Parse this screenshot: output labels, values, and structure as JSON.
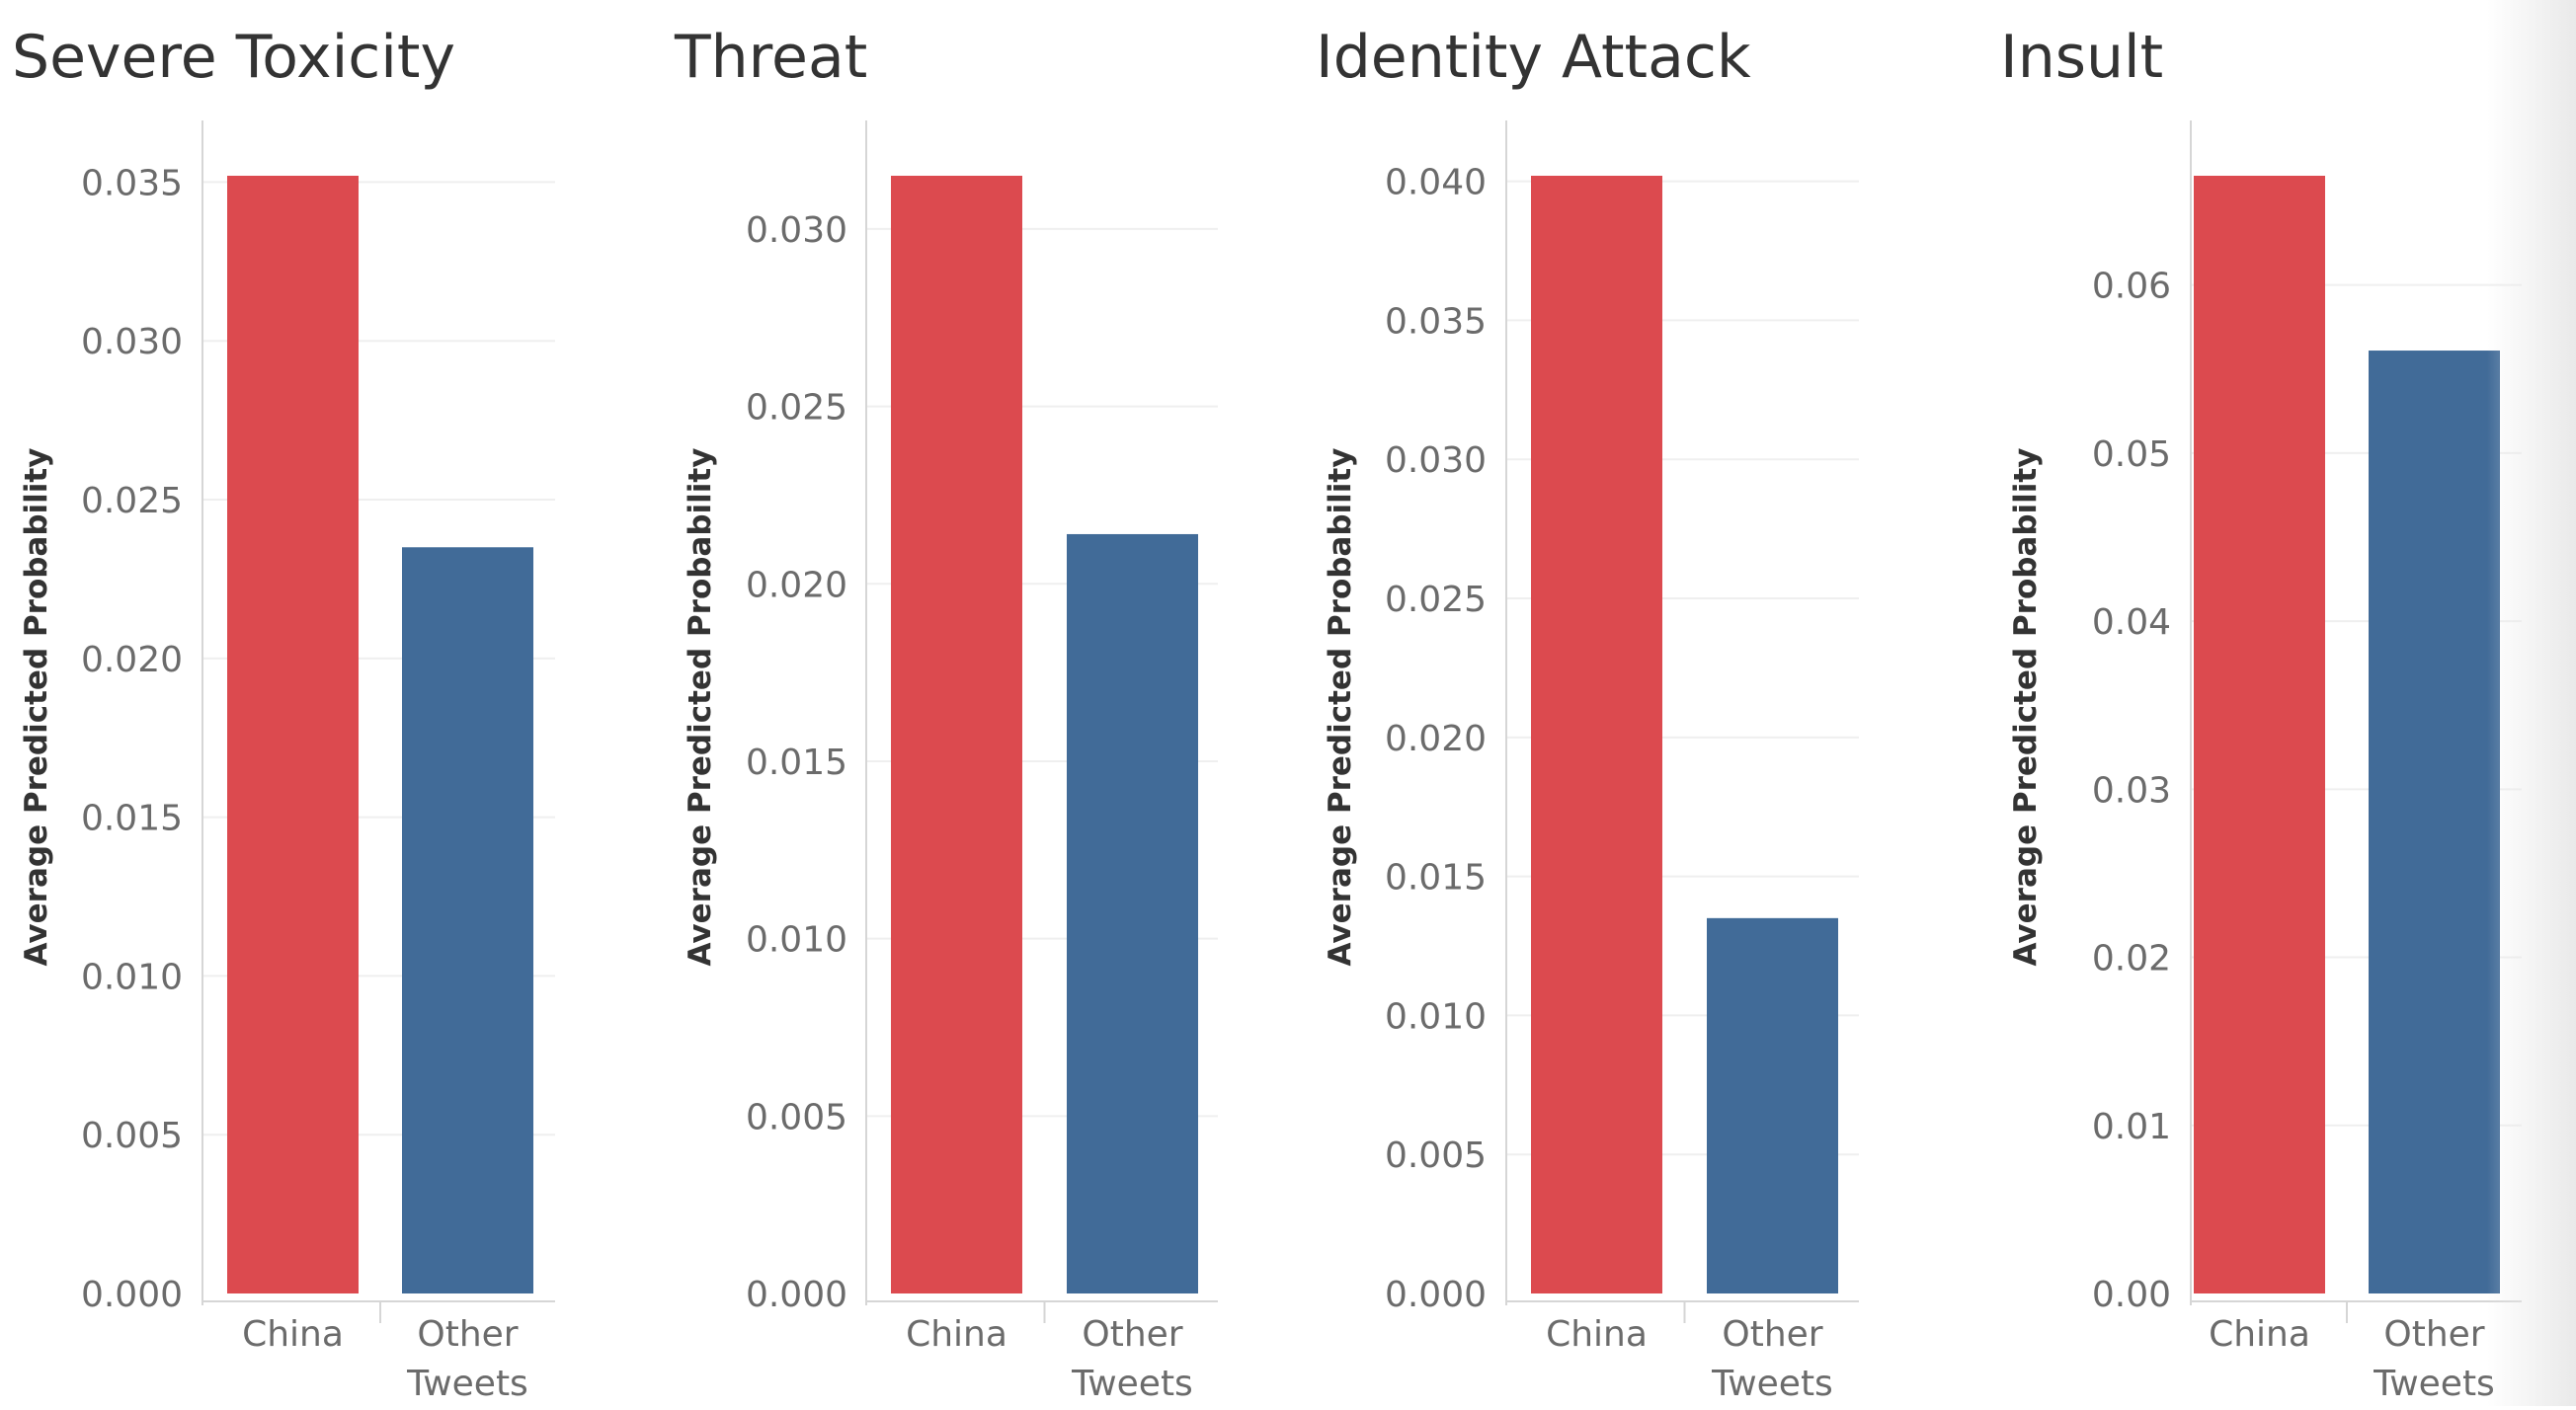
{
  "colors": {
    "china": "#DC4A4F",
    "other": "#416B98",
    "grid": "#efefef",
    "axis": "#d6d6d6",
    "tick_text": "#6b6b6b",
    "title_text": "#333333"
  },
  "chart_data": [
    {
      "type": "bar",
      "title": "Severe Toxicity",
      "ylabel": "Average Predicted Probability",
      "categories": [
        "China",
        "Other Tweets"
      ],
      "category_lines": [
        [
          "China"
        ],
        [
          "Other",
          "Tweets"
        ]
      ],
      "values": [
        0.0352,
        0.0235
      ],
      "ylim": [
        0,
        0.0352
      ],
      "yticks": [
        0,
        0.005,
        0.01,
        0.015,
        0.02,
        0.025,
        0.03,
        0.035
      ],
      "ytick_labels": [
        "0.000",
        "0.005",
        "0.010",
        "0.015",
        "0.020",
        "0.025",
        "0.030",
        "0.035"
      ],
      "grid": true
    },
    {
      "type": "bar",
      "title": "Threat",
      "ylabel": "Average Predicted Probability",
      "categories": [
        "China",
        "Other Tweets"
      ],
      "category_lines": [
        [
          "China"
        ],
        [
          "Other",
          "Tweets"
        ]
      ],
      "values": [
        0.0315,
        0.0214
      ],
      "ylim": [
        0,
        0.0315
      ],
      "yticks": [
        0,
        0.005,
        0.01,
        0.015,
        0.02,
        0.025,
        0.03
      ],
      "ytick_labels": [
        "0.000",
        "0.005",
        "0.010",
        "0.015",
        "0.020",
        "0.025",
        "0.030"
      ],
      "grid": true
    },
    {
      "type": "bar",
      "title": "Identity Attack",
      "ylabel": "Average Predicted Probability",
      "categories": [
        "China",
        "Other Tweets"
      ],
      "category_lines": [
        [
          "China"
        ],
        [
          "Other",
          "Tweets"
        ]
      ],
      "values": [
        0.0402,
        0.0135
      ],
      "ylim": [
        0,
        0.0402
      ],
      "yticks": [
        0,
        0.005,
        0.01,
        0.015,
        0.02,
        0.025,
        0.03,
        0.035,
        0.04
      ],
      "ytick_labels": [
        "0.000",
        "0.005",
        "0.010",
        "0.015",
        "0.020",
        "0.025",
        "0.030",
        "0.035",
        "0.040"
      ],
      "grid": true
    },
    {
      "type": "bar",
      "title": "Insult",
      "ylabel": "Average Predicted Probability",
      "categories": [
        "China",
        "Other Tweets"
      ],
      "category_lines": [
        [
          "China"
        ],
        [
          "Other",
          "Tweets"
        ]
      ],
      "values": [
        0.0665,
        0.0561
      ],
      "ylim": [
        0,
        0.0665
      ],
      "yticks": [
        0,
        0.01,
        0.02,
        0.03,
        0.04,
        0.05,
        0.06
      ],
      "ytick_labels": [
        "0.00",
        "0.01",
        "0.02",
        "0.03",
        "0.04",
        "0.05",
        "0.06"
      ],
      "grid": true
    }
  ]
}
